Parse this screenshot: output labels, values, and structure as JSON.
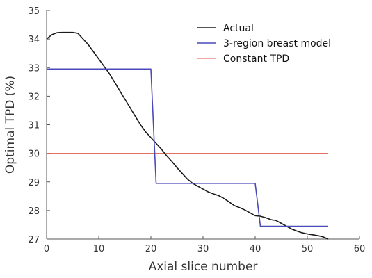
{
  "chart_data": {
    "type": "line",
    "xlabel": "Axial slice number",
    "ylabel": "Optimal TPD (%)",
    "xlim": [
      0,
      60
    ],
    "ylim": [
      27,
      35
    ],
    "xticks": [
      0,
      10,
      20,
      30,
      40,
      50,
      60
    ],
    "yticks": [
      27,
      28,
      29,
      30,
      31,
      32,
      33,
      34,
      35
    ],
    "grid": false,
    "legend_position": "top-right",
    "series": [
      {
        "name": "Actual",
        "color": "#1a1a1a",
        "x": [
          0,
          1,
          2,
          3,
          4,
          5,
          6,
          7,
          8,
          9,
          10,
          11,
          12,
          13,
          14,
          15,
          16,
          17,
          18,
          19,
          20,
          21,
          22,
          23,
          24,
          25,
          26,
          27,
          28,
          29,
          30,
          31,
          32,
          33,
          34,
          35,
          36,
          37,
          38,
          39,
          40,
          41,
          42,
          43,
          44,
          45,
          46,
          47,
          48,
          49,
          50,
          51,
          52,
          53,
          54
        ],
        "y": [
          34.0,
          34.15,
          34.22,
          34.23,
          34.23,
          34.23,
          34.2,
          34.0,
          33.8,
          33.55,
          33.3,
          33.05,
          32.8,
          32.5,
          32.2,
          31.9,
          31.6,
          31.3,
          31.0,
          30.75,
          30.55,
          30.35,
          30.15,
          29.92,
          29.72,
          29.5,
          29.3,
          29.1,
          28.95,
          28.85,
          28.75,
          28.65,
          28.58,
          28.52,
          28.42,
          28.3,
          28.17,
          28.1,
          28.02,
          27.92,
          27.82,
          27.8,
          27.75,
          27.68,
          27.65,
          27.55,
          27.45,
          27.35,
          27.28,
          27.22,
          27.18,
          27.15,
          27.12,
          27.08,
          27.0
        ]
      },
      {
        "name": "3-region breast model",
        "color": "#4a4ab8",
        "x": [
          0,
          20,
          20,
          21,
          21,
          40,
          40,
          41,
          41,
          54
        ],
        "y": [
          32.95,
          32.95,
          32.95,
          28.95,
          28.95,
          28.95,
          28.95,
          27.45,
          27.45,
          27.45
        ]
      },
      {
        "name": "Constant TPD",
        "color": "#e05a4a",
        "x": [
          0,
          54
        ],
        "y": [
          30.0,
          30.0
        ]
      }
    ]
  }
}
